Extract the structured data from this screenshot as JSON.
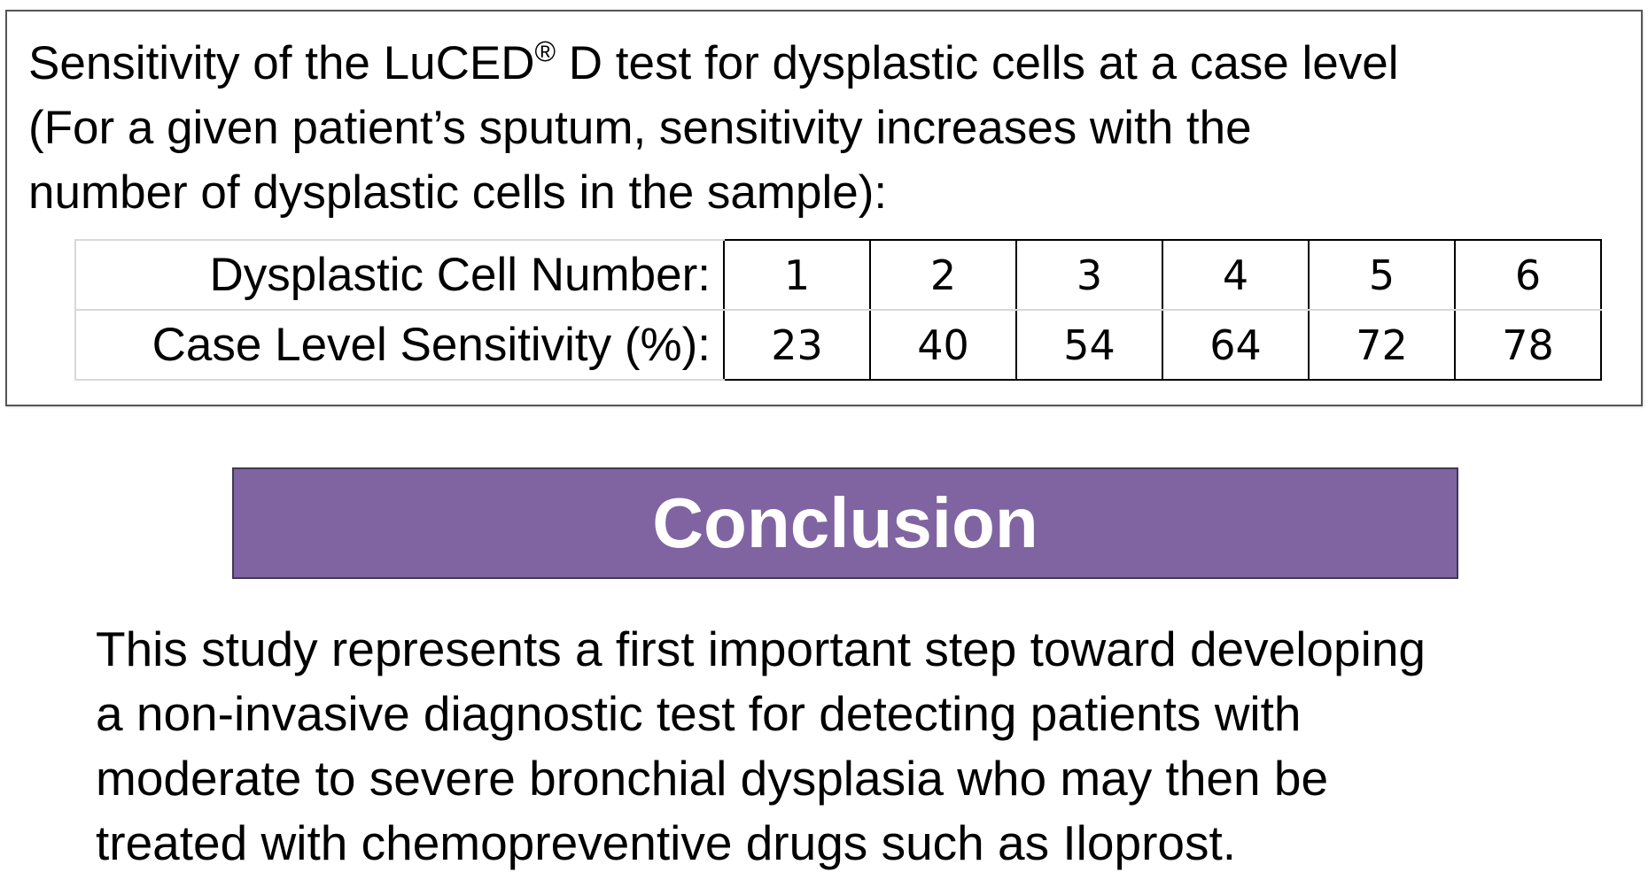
{
  "results": {
    "intro_lines": [
      "Sensitivity of the LuCED",
      " D test for dysplastic cells at a case level",
      "(For a given patient’s sputum, sensitivity increases with the",
      "number of dysplastic cells in the sample):"
    ],
    "reg_mark": "®",
    "table": {
      "row1_label": "Dysplastic Cell Number:",
      "row2_label": "Case Level Sensitivity (%):",
      "cell_numbers": [
        "1",
        "2",
        "3",
        "4",
        "5",
        "6"
      ],
      "sensitivities": [
        "23",
        "40",
        "54",
        "64",
        "72",
        "78"
      ]
    }
  },
  "conclusion": {
    "heading": "Conclusion",
    "lines": [
      "This study represents a first important step toward developing",
      "a non-invasive diagnostic test for detecting patients with",
      "moderate to severe bronchial dysplasia who may then be",
      "treated with chemopreventive drugs such as Iloprost."
    ]
  },
  "colors": {
    "banner": "#8064a2",
    "banner_text": "#ffffff"
  }
}
